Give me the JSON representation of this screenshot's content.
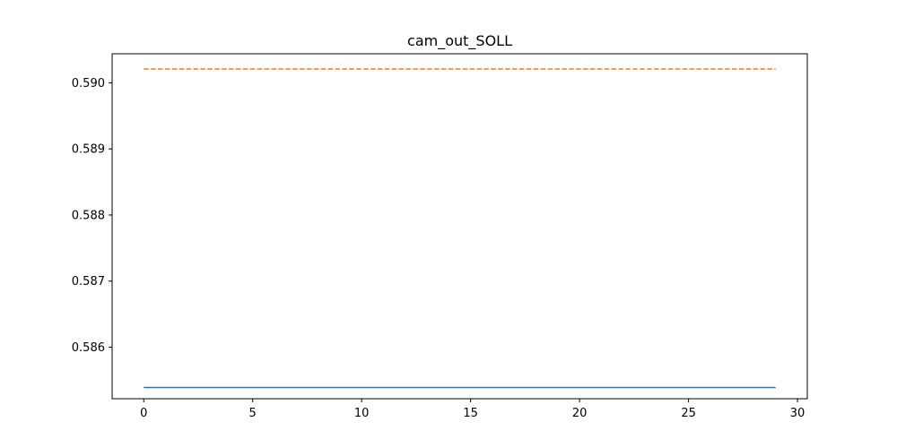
{
  "chart_data": {
    "type": "line",
    "title": "cam_out_SOLL",
    "xlabel": "",
    "ylabel": "",
    "xlim": [
      -1.45,
      30.45
    ],
    "ylim": [
      0.58522,
      0.59044
    ],
    "grid": false,
    "legend": "none",
    "x_ticks": [
      0,
      5,
      10,
      15,
      20,
      25,
      30
    ],
    "x_tick_labels": [
      "0",
      "5",
      "10",
      "15",
      "20",
      "25",
      "30"
    ],
    "y_ticks": [
      0.586,
      0.587,
      0.588,
      0.589,
      0.59
    ],
    "y_tick_labels": [
      "0.586",
      "0.587",
      "0.588",
      "0.589",
      "0.590"
    ],
    "series": [
      {
        "color": "#1f77b4",
        "style": "solid",
        "x": [
          0,
          29
        ],
        "y": [
          0.58539,
          0.58539
        ]
      },
      {
        "color": "#ff7f0e",
        "style": "dashed",
        "x": [
          0,
          29
        ],
        "y": [
          0.59021,
          0.59021
        ]
      }
    ]
  }
}
